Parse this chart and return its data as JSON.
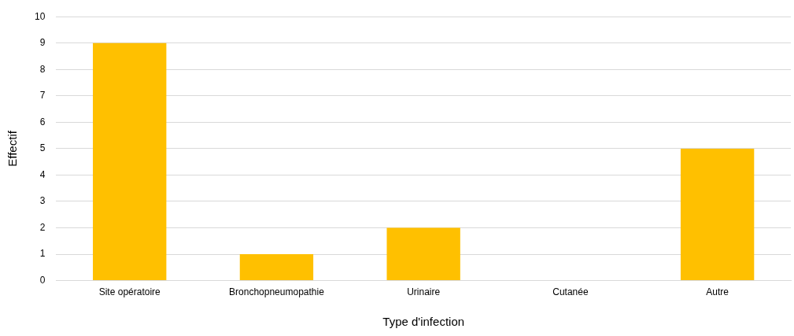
{
  "chart_data": {
    "type": "bar",
    "xlabel": "Type d'infection",
    "ylabel": "Effectif",
    "categories": [
      "Site opératoire",
      "Bronchopneumopathie",
      "Urinaire",
      "Cutanée",
      "Autre"
    ],
    "values": [
      9,
      1,
      2,
      0,
      5
    ],
    "color": "#ffc000",
    "ylim": [
      0,
      10
    ],
    "yticks": [
      0,
      1,
      2,
      3,
      4,
      5,
      6,
      7,
      8,
      9,
      10
    ],
    "grid": "y",
    "legend": false
  }
}
